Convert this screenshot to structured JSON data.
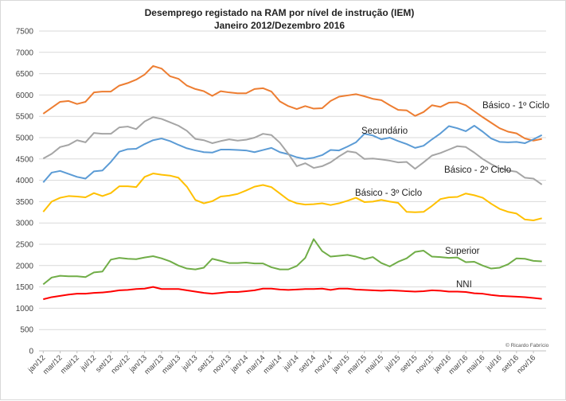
{
  "chart_data": {
    "type": "line",
    "title": "Desemprego registado na RAM por nível de instrução (IEM)",
    "subtitle": "Janeiro 2012/Dezembro 2016",
    "credit": "© Ricardo Fabrício",
    "ylim": [
      0,
      7500
    ],
    "y_ticks": [
      "0",
      "500",
      "1000",
      "1500",
      "2000",
      "2500",
      "3000",
      "3500",
      "4000",
      "4500",
      "5000",
      "5500",
      "6000",
      "6500",
      "7000",
      "7500"
    ],
    "grid": true,
    "x_tick_labels": [
      "jan/12",
      "mar/12",
      "mai/12",
      "jul/12",
      "set/12",
      "nov/12",
      "jan/13",
      "mar/13",
      "mai/13",
      "jul/13",
      "set/13",
      "nov/13",
      "jan/14",
      "mar/14",
      "mai/14",
      "jul/14",
      "set/14",
      "nov/14",
      "jan/15",
      "mar/15",
      "mai/15",
      "jul/15",
      "set/15",
      "nov/15",
      "jan/16",
      "mar/16",
      "mai/16",
      "jul/16",
      "set/16",
      "nov/16"
    ],
    "x_months": 60,
    "series": [
      {
        "name": "Básico - 1º Ciclo",
        "color": "#ED7D31",
        "values": [
          5560,
          5700,
          5840,
          5860,
          5790,
          5840,
          6060,
          6080,
          6080,
          6220,
          6280,
          6360,
          6480,
          6680,
          6620,
          6440,
          6380,
          6220,
          6140,
          6090,
          5980,
          6090,
          6060,
          6040,
          6040,
          6140,
          6160,
          6080,
          5850,
          5740,
          5670,
          5740,
          5680,
          5690,
          5860,
          5960,
          5990,
          6020,
          5970,
          5910,
          5880,
          5760,
          5650,
          5640,
          5510,
          5600,
          5760,
          5720,
          5820,
          5830,
          5760,
          5620,
          5480,
          5350,
          5220,
          5140,
          5100,
          4980,
          4930,
          4970
        ]
      },
      {
        "name": "Secundário",
        "color": "#5B9BD5",
        "values": [
          3950,
          4180,
          4220,
          4150,
          4080,
          4040,
          4210,
          4230,
          4430,
          4670,
          4730,
          4740,
          4850,
          4940,
          4980,
          4920,
          4830,
          4750,
          4700,
          4660,
          4650,
          4720,
          4720,
          4710,
          4700,
          4660,
          4710,
          4760,
          4660,
          4610,
          4540,
          4500,
          4530,
          4590,
          4710,
          4700,
          4790,
          4890,
          5090,
          5050,
          4960,
          5000,
          4920,
          4850,
          4760,
          4810,
          4960,
          5100,
          5270,
          5220,
          5150,
          5280,
          5140,
          4980,
          4900,
          4890,
          4900,
          4870,
          4960,
          5060
        ]
      },
      {
        "name": "Básico - 2º Ciclo",
        "color": "#A5A5A5",
        "values": [
          4510,
          4620,
          4780,
          4830,
          4940,
          4890,
          5110,
          5090,
          5090,
          5240,
          5260,
          5200,
          5380,
          5480,
          5440,
          5360,
          5280,
          5160,
          4970,
          4940,
          4870,
          4920,
          4960,
          4930,
          4950,
          5000,
          5090,
          5060,
          4880,
          4620,
          4330,
          4400,
          4290,
          4330,
          4420,
          4560,
          4680,
          4650,
          4500,
          4510,
          4490,
          4460,
          4420,
          4430,
          4270,
          4420,
          4580,
          4640,
          4720,
          4800,
          4780,
          4650,
          4500,
          4380,
          4280,
          4230,
          4200,
          4060,
          4040,
          3900
        ]
      },
      {
        "name": "Básico - 3º Ciclo",
        "color": "#FFC000",
        "values": [
          3260,
          3500,
          3590,
          3630,
          3620,
          3600,
          3700,
          3630,
          3700,
          3860,
          3860,
          3840,
          4080,
          4160,
          4130,
          4110,
          4060,
          3850,
          3540,
          3460,
          3510,
          3620,
          3640,
          3680,
          3760,
          3850,
          3890,
          3840,
          3690,
          3540,
          3460,
          3430,
          3440,
          3460,
          3420,
          3460,
          3520,
          3590,
          3490,
          3500,
          3540,
          3500,
          3470,
          3260,
          3250,
          3260,
          3400,
          3560,
          3600,
          3610,
          3690,
          3650,
          3590,
          3450,
          3330,
          3260,
          3220,
          3080,
          3060,
          3110
        ]
      },
      {
        "name": "Superior",
        "color": "#70AD47",
        "values": [
          1560,
          1720,
          1760,
          1750,
          1750,
          1730,
          1840,
          1860,
          2140,
          2180,
          2160,
          2150,
          2190,
          2220,
          2170,
          2100,
          2000,
          1930,
          1910,
          1950,
          2160,
          2110,
          2060,
          2060,
          2070,
          2050,
          2050,
          1960,
          1910,
          1910,
          1990,
          2180,
          2620,
          2340,
          2210,
          2230,
          2250,
          2210,
          2150,
          2200,
          2060,
          1980,
          2090,
          2170,
          2320,
          2350,
          2210,
          2200,
          2180,
          2190,
          2080,
          2090,
          2000,
          1930,
          1950,
          2030,
          2170,
          2160,
          2110,
          2100
        ]
      },
      {
        "name": "NNI",
        "color": "#FF0000",
        "values": [
          1210,
          1260,
          1290,
          1320,
          1340,
          1340,
          1360,
          1370,
          1390,
          1420,
          1430,
          1450,
          1460,
          1500,
          1450,
          1450,
          1450,
          1420,
          1390,
          1360,
          1340,
          1360,
          1380,
          1380,
          1400,
          1420,
          1460,
          1460,
          1440,
          1430,
          1440,
          1450,
          1450,
          1460,
          1430,
          1460,
          1460,
          1440,
          1430,
          1420,
          1410,
          1420,
          1410,
          1400,
          1390,
          1400,
          1420,
          1410,
          1390,
          1390,
          1380,
          1350,
          1340,
          1310,
          1290,
          1280,
          1270,
          1260,
          1240,
          1220
        ]
      }
    ],
    "series_labels": {
      "Básico - 1º Ciclo": "Básico - 1º Ciclo",
      "Secundário": "Secundário",
      "Básico - 2º Ciclo": "Básico - 2º Ciclo",
      "Básico - 3º Ciclo": "Básico - 3º Ciclo",
      "Superior": "Superior",
      "NNI": "NNI"
    }
  }
}
